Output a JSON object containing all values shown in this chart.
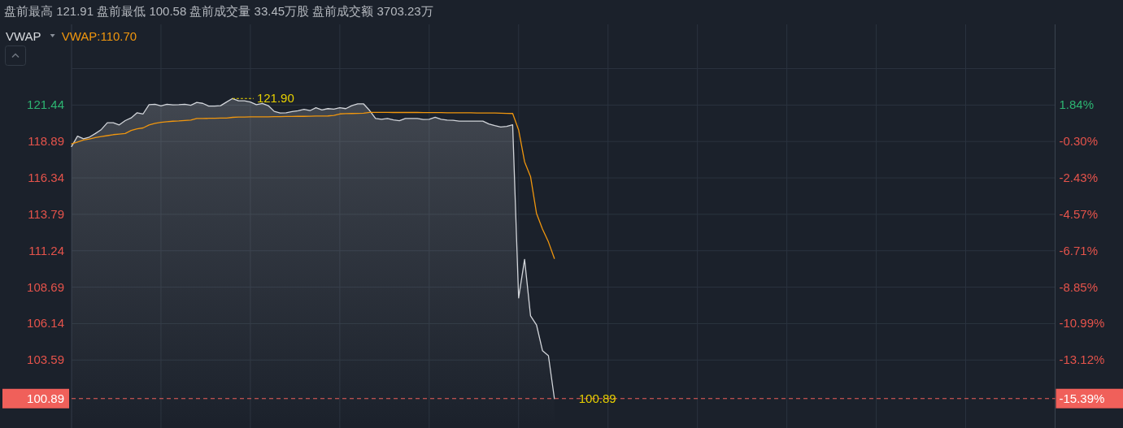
{
  "chart_data": {
    "type": "line",
    "title": "盘前最高 121.91 盘前最低 100.58 盘前成交量 33.45万股 盘前成交额 3703.23万",
    "legend_title": "VWAP",
    "categories": [
      null,
      null,
      null,
      null,
      null,
      null,
      null,
      null,
      null,
      null,
      null,
      null,
      null,
      null,
      null,
      null,
      null,
      null,
      null,
      null,
      null,
      null,
      null,
      null,
      null,
      null,
      null,
      null,
      null,
      null,
      null,
      null,
      null,
      null,
      null,
      null,
      null,
      null,
      null,
      null,
      null,
      null,
      null,
      null,
      null,
      null,
      null,
      null,
      null,
      null,
      null,
      null,
      null,
      null,
      null,
      null,
      null,
      null,
      null,
      null,
      null,
      null,
      null,
      null,
      null,
      null,
      null,
      null,
      null,
      null,
      null,
      null,
      null,
      null,
      null,
      null,
      null,
      null,
      null,
      null,
      null,
      null,
      null,
      null,
      null,
      null,
      null,
      null,
      null,
      null,
      null,
      null,
      null,
      null,
      null,
      null,
      null,
      null,
      null,
      null,
      null,
      null,
      null,
      null,
      null,
      null,
      null,
      null,
      null,
      null,
      null,
      null,
      null,
      null,
      null,
      null,
      null,
      null,
      null,
      null,
      null,
      null,
      null,
      null,
      null,
      null,
      null,
      null,
      null,
      null,
      null,
      null,
      null,
      null,
      null,
      null,
      null,
      null,
      null,
      null,
      null,
      null,
      null,
      null,
      null,
      null,
      null,
      null,
      null,
      null,
      null,
      null,
      null,
      null,
      null,
      null,
      null,
      null,
      null,
      null,
      null,
      null,
      null,
      null,
      null,
      null
    ],
    "series": [
      {
        "type": "area",
        "color": "#d2d5da",
        "values": [
          118.54,
          119.26,
          119.08,
          119.2,
          119.45,
          119.73,
          120.2,
          120.2,
          120.05,
          120.35,
          120.54,
          120.9,
          120.82,
          121.47,
          121.5,
          121.38,
          121.5,
          121.45,
          121.47,
          121.5,
          121.43,
          121.62,
          121.56,
          121.37,
          121.37,
          121.4,
          121.65,
          121.9,
          121.74,
          121.74,
          121.65,
          121.47,
          121.55,
          121.4,
          121.0,
          120.88,
          120.9,
          120.98,
          121.04,
          121.14,
          121.05,
          121.25,
          121.1,
          121.19,
          121.15,
          121.25,
          121.19,
          121.4,
          121.52,
          121.52,
          121.06,
          120.5,
          120.45,
          120.5,
          120.4,
          120.34,
          120.5,
          120.5,
          120.5,
          120.43,
          120.45,
          120.58,
          120.45,
          120.39,
          120.37,
          120.32,
          120.32,
          120.32,
          120.32,
          120.32,
          120.12,
          120.0,
          119.9,
          119.95,
          120.06,
          107.94,
          110.64,
          106.68,
          106.05,
          104.25,
          103.89,
          100.89,
          null,
          null,
          null,
          null,
          null,
          null,
          null,
          null,
          null,
          null,
          null,
          null,
          null,
          null,
          null,
          null,
          null,
          null,
          null,
          null,
          null,
          null,
          null,
          null,
          null,
          null,
          null,
          null,
          null,
          null,
          null,
          null,
          null,
          null,
          null,
          null,
          null,
          null,
          null,
          null,
          null,
          null,
          null,
          null,
          null,
          null,
          null,
          null,
          null,
          null,
          null,
          null,
          null,
          null,
          null,
          null,
          null,
          null,
          null,
          null,
          null,
          null,
          null,
          null,
          null,
          null,
          null,
          null,
          null,
          null,
          null,
          null,
          null,
          null,
          null,
          null,
          null,
          null,
          null,
          null,
          null,
          null,
          null,
          null
        ]
      },
      {
        "name": "VWAP:110.70",
        "color": "#f0960e",
        "values": [
          118.72,
          118.85,
          118.99,
          119.07,
          119.16,
          119.23,
          119.3,
          119.37,
          119.41,
          119.45,
          119.66,
          119.78,
          119.84,
          120.05,
          120.16,
          120.23,
          120.27,
          120.31,
          120.33,
          120.36,
          120.39,
          120.5,
          120.5,
          120.51,
          120.52,
          120.53,
          120.53,
          120.58,
          120.6,
          120.6,
          120.61,
          120.61,
          120.62,
          120.62,
          120.63,
          120.63,
          120.64,
          120.64,
          120.65,
          120.65,
          120.66,
          120.67,
          120.67,
          120.68,
          120.71,
          120.82,
          120.84,
          120.85,
          120.86,
          120.87,
          120.93,
          120.93,
          120.93,
          120.93,
          120.92,
          120.92,
          120.92,
          120.92,
          120.92,
          120.91,
          120.91,
          120.91,
          120.91,
          120.9,
          120.9,
          120.9,
          120.9,
          120.9,
          120.89,
          120.89,
          120.89,
          120.88,
          120.87,
          120.86,
          120.85,
          119.7,
          117.47,
          116.43,
          113.86,
          112.76,
          111.86,
          110.7,
          null,
          null,
          null,
          null,
          null,
          null,
          null,
          null,
          null,
          null,
          null,
          null,
          null,
          null,
          null,
          null,
          null,
          null,
          null,
          null,
          null,
          null,
          null,
          null,
          null,
          null,
          null,
          null,
          null,
          null,
          null,
          null,
          null,
          null,
          null,
          null,
          null,
          null,
          null,
          null,
          null,
          null,
          null,
          null,
          null,
          null,
          null,
          null,
          null,
          null,
          null,
          null,
          null,
          null,
          null,
          null,
          null,
          null,
          null,
          null,
          null,
          null,
          null,
          null,
          null,
          null,
          null,
          null,
          null,
          null,
          null,
          null,
          null,
          null,
          null,
          null,
          null,
          null,
          null,
          null,
          null,
          null,
          null,
          null
        ]
      }
    ],
    "ylim": [
      98.83,
      127.09
    ],
    "yticks": [
      103.59,
      106.14,
      108.69,
      111.24,
      113.79,
      116.34,
      118.89,
      121.44,
      {
        "value": 123.99,
        "label": null
      }
    ],
    "y2lim": [
      -17.12,
      6.58
    ],
    "y2ticks": [
      {
        "value": 1.84,
        "label": "1.84%"
      },
      {
        "value": -0.3,
        "label": "-0.30%"
      },
      {
        "value": -2.43,
        "label": "-2.43%"
      },
      {
        "value": -4.57,
        "label": "-4.57%"
      },
      {
        "value": -6.71,
        "label": "-6.71%"
      },
      {
        "value": -8.85,
        "label": "-8.85%"
      },
      {
        "value": -10.99,
        "label": "-10.99%"
      },
      {
        "value": -13.12,
        "label": "-13.12%"
      },
      {
        "value": -15.39,
        "label": "-15.39%"
      }
    ],
    "grid": true,
    "legend": "top left",
    "ref_lines": [
      {
        "axis": "y",
        "value": 100.89,
        "label": "100.89",
        "color": "#f0605a",
        "line_style": "dashed"
      }
    ],
    "annotations": [
      "121.90",
      "100.89"
    ]
  }
}
